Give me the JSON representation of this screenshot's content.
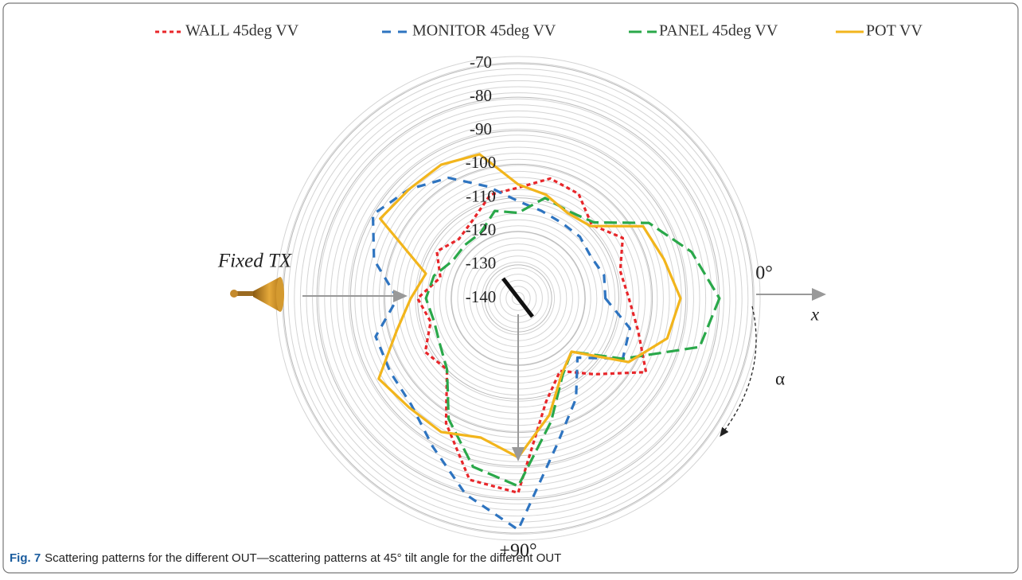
{
  "chart_data": {
    "type": "polar",
    "theta": [
      0,
      15,
      30,
      45,
      60,
      75,
      90,
      105,
      120,
      135,
      150,
      165,
      180,
      195,
      210,
      225,
      240,
      255,
      270,
      285,
      300,
      315,
      330,
      345
    ],
    "rlim": [
      -140,
      -70
    ],
    "rticks": [
      -70,
      -80,
      -90,
      -100,
      -110,
      -120,
      -130,
      -140
    ],
    "theta_labels": [
      {
        "value": 0,
        "label": "0°"
      },
      {
        "value": 90,
        "label": "+90°"
      }
    ],
    "series": [
      {
        "name": "WALL 45deg VV",
        "color": "#e8262a",
        "linestyle": "dotted",
        "values": [
          -107,
          -103,
          -96,
          -108,
          -115,
          -108,
          -82,
          -84,
          -97,
          -110,
          -108,
          -113,
          -110,
          -116,
          -112,
          -115,
          -113,
          -108,
          -107,
          -103,
          -104,
          -109,
          -104,
          -108.5
        ]
      },
      {
        "name": "MONITOR 45deg VV",
        "color": "#2e74c0",
        "linestyle": "dashed",
        "values": [
          -114,
          -105.5,
          -104,
          -115,
          -105.5,
          -95,
          -71,
          -79.5,
          -89,
          -95,
          -96,
          -96,
          -104,
          -95.5,
          -90,
          -94,
          -98.5,
          -105.5,
          -111,
          -113,
          -114,
          -114,
          -115,
          -113.5
        ]
      },
      {
        "name": "PANEL 45deg VV",
        "color": "#2aa84a",
        "linestyle": "longdash",
        "values": [
          -80,
          -84,
          -104,
          -117.5,
          -113.5,
          -102,
          -84,
          -88,
          -98.5,
          -110,
          -113,
          -114,
          -112.5,
          -114,
          -117.5,
          -117.5,
          -117.5,
          -113,
          -114.5,
          -109,
          -110,
          -108,
          -95,
          -86.5
        ]
      },
      {
        "name": "POT VV",
        "color": "#f2b51c",
        "linestyle": "solid",
        "values": [
          -91.6,
          -94,
          -102,
          -117.5,
          -114,
          -104,
          -92.6,
          -97,
          -94,
          -94,
          -92,
          -102.5,
          -108,
          -111.5,
          -92.5,
          -94,
          -94,
          -95.5,
          -106,
          -108,
          -110.6,
          -109.5,
          -97,
          -95
        ]
      }
    ],
    "annotations": [
      "Fixed TX",
      "x",
      "α"
    ],
    "caption_label": "Fig. 7",
    "caption": "Scattering patterns for the different OUT—scattering patterns at 45° tilt angle for the different OUT"
  }
}
